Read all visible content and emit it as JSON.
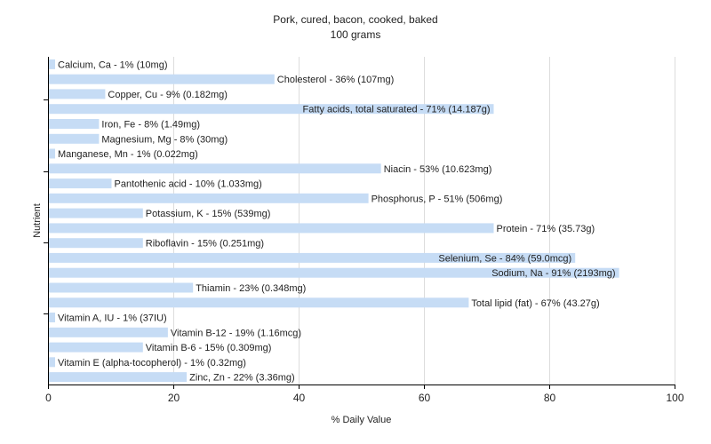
{
  "chart_data": {
    "type": "bar",
    "orientation": "horizontal",
    "title": "Pork, cured, bacon, cooked, baked",
    "subtitle": "100 grams",
    "xlabel": "% Daily Value",
    "ylabel": "Nutrient",
    "xlim": [
      0,
      100
    ],
    "xticks": [
      0,
      20,
      40,
      60,
      80,
      100
    ],
    "grid": true,
    "bar_color": "#c6dcf5",
    "categories": [
      "Calcium, Ca",
      "Cholesterol",
      "Copper, Cu",
      "Fatty acids, total saturated",
      "Iron, Fe",
      "Magnesium, Mg",
      "Manganese, Mn",
      "Niacin",
      "Pantothenic acid",
      "Phosphorus, P",
      "Potassium, K",
      "Protein",
      "Riboflavin",
      "Selenium, Se",
      "Sodium, Na",
      "Thiamin",
      "Total lipid (fat)",
      "Vitamin A, IU",
      "Vitamin B-12",
      "Vitamin B-6",
      "Vitamin E (alpha-tocopherol)",
      "Zinc, Zn"
    ],
    "values": [
      1,
      36,
      9,
      71,
      8,
      8,
      1,
      53,
      10,
      51,
      15,
      71,
      15,
      84,
      91,
      23,
      67,
      1,
      19,
      15,
      1,
      22
    ],
    "labels": [
      "Calcium, Ca - 1% (10mg)",
      "Cholesterol - 36% (107mg)",
      "Copper, Cu - 9% (0.182mg)",
      "Fatty acids, total saturated - 71% (14.187g)",
      "Iron, Fe - 8% (1.49mg)",
      "Magnesium, Mg - 8% (30mg)",
      "Manganese, Mn - 1% (0.022mg)",
      "Niacin - 53% (10.623mg)",
      "Pantothenic acid - 10% (1.033mg)",
      "Phosphorus, P - 51% (506mg)",
      "Potassium, K - 15% (539mg)",
      "Protein - 71% (35.73g)",
      "Riboflavin - 15% (0.251mg)",
      "Selenium, Se - 84% (59.0mcg)",
      "Sodium, Na - 91% (2193mg)",
      "Thiamin - 23% (0.348mg)",
      "Total lipid (fat) - 67% (43.27g)",
      "Vitamin A, IU - 1% (37IU)",
      "Vitamin B-12 - 19% (1.16mcg)",
      "Vitamin B-6 - 15% (0.309mg)",
      "Vitamin E (alpha-tocopherol) - 1% (0.32mg)",
      "Zinc, Zn - 22% (3.36mg)"
    ],
    "label_inside": [
      false,
      false,
      false,
      true,
      false,
      false,
      false,
      false,
      false,
      false,
      false,
      false,
      false,
      true,
      true,
      false,
      false,
      false,
      false,
      false,
      false,
      false
    ]
  }
}
